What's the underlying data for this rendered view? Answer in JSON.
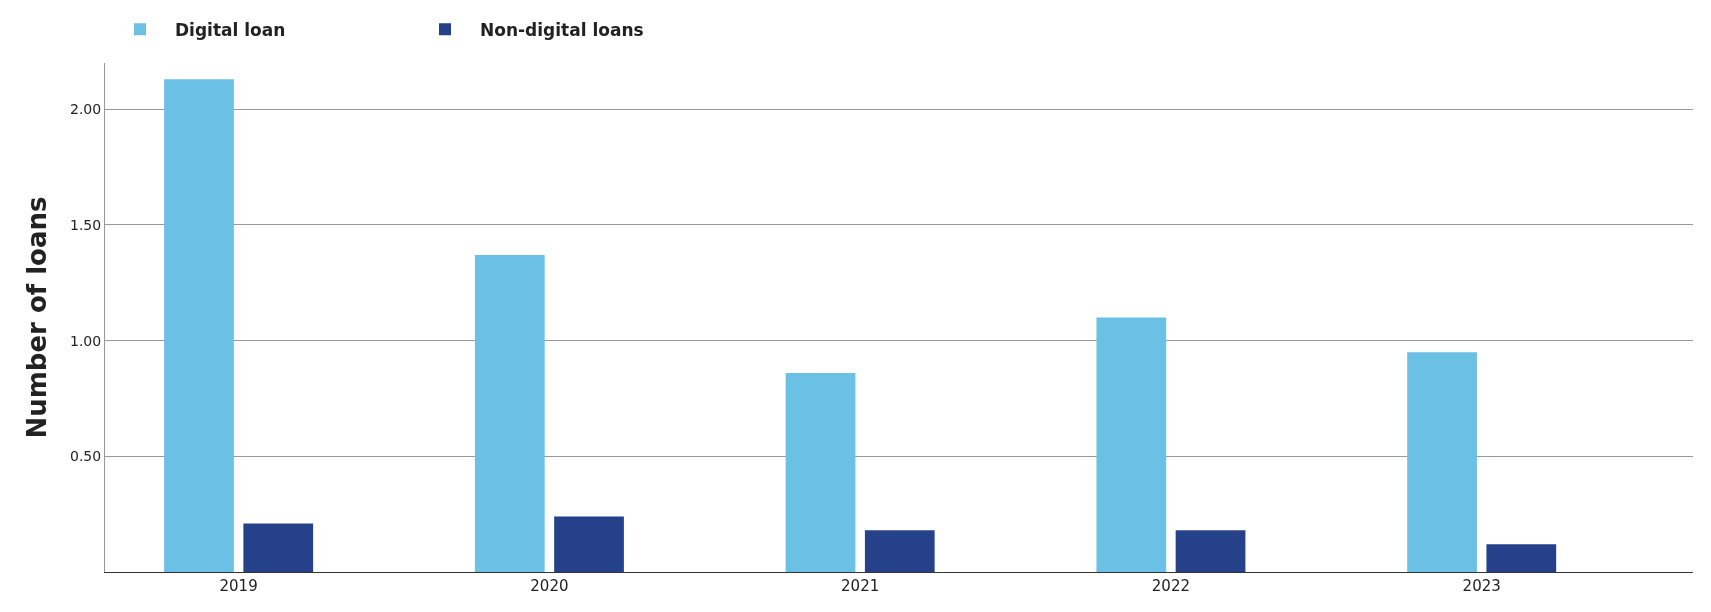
{
  "chart_data": {
    "type": "bar",
    "ylabel": "Number of loans",
    "categories": [
      "2019",
      "2020",
      "2021",
      "2022",
      "2023"
    ],
    "series": [
      {
        "name": "Digital loan",
        "color": "#6ac1e5",
        "values": [
          2.13,
          1.37,
          0.86,
          1.1,
          0.95
        ]
      },
      {
        "name": "Non-digital loans",
        "color": "#24418a",
        "values": [
          0.21,
          0.24,
          0.18,
          0.18,
          0.12
        ]
      }
    ],
    "ylim": [
      0,
      2.2
    ],
    "yticks": [
      {
        "value": 0.5,
        "label": "0.50"
      },
      {
        "value": 1.0,
        "label": "1.00"
      },
      {
        "value": 1.5,
        "label": "1.50"
      },
      {
        "value": 2.0,
        "label": "2.00"
      }
    ],
    "grid": "y",
    "legend": "top left"
  }
}
